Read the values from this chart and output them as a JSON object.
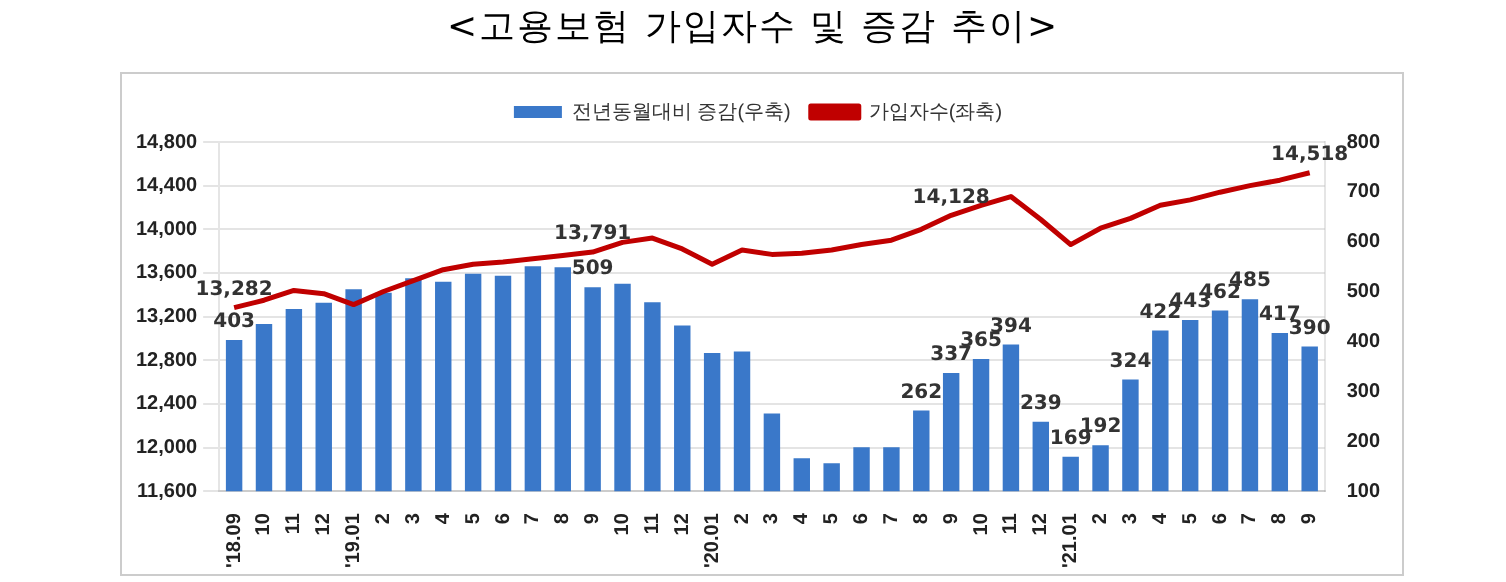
{
  "chart_data": {
    "type": "bar",
    "title": "<고용보험 가입자수 및 증감 추이>",
    "categories": [
      "'18.09",
      "10",
      "11",
      "12",
      "'19.01",
      "2",
      "3",
      "4",
      "5",
      "6",
      "7",
      "8",
      "9",
      "10",
      "11",
      "12",
      "'20.01",
      "2",
      "3",
      "4",
      "5",
      "6",
      "7",
      "8",
      "9",
      "10",
      "11",
      "12",
      "'21.01",
      "2",
      "3",
      "4",
      "5",
      "6",
      "7",
      "8",
      "9"
    ],
    "series": [
      {
        "name": "전년동월대비 증감(우축)",
        "axis": "y2",
        "color": "#3a78c9",
        "values": [
          403,
          435,
          465,
          478,
          505,
          498,
          527,
          520,
          536,
          532,
          551,
          549,
          509,
          516,
          479,
          432,
          377,
          380,
          256,
          166,
          156,
          188,
          188,
          262,
          337,
          365,
          394,
          239,
          169,
          192,
          324,
          422,
          443,
          462,
          485,
          417,
          390
        ],
        "value_labels": [
          "403",
          null,
          null,
          null,
          null,
          null,
          null,
          null,
          null,
          null,
          null,
          null,
          "509",
          null,
          null,
          null,
          null,
          null,
          null,
          null,
          null,
          null,
          null,
          "262",
          "337",
          "365",
          "394",
          "239",
          "169",
          "192",
          "324",
          "422",
          "443",
          "462",
          "485",
          "417",
          "390"
        ]
      },
      {
        "name": "가입자수(좌축)",
        "type": "line",
        "color": "#c00000",
        "values": [
          13282,
          13350,
          13440,
          13410,
          13310,
          13430,
          13530,
          13630,
          13680,
          13700,
          13730,
          13760,
          13791,
          13880,
          13920,
          13820,
          13680,
          13810,
          13770,
          13780,
          13810,
          13860,
          13900,
          14000,
          14128,
          14220,
          14300,
          14090,
          13860,
          14010,
          14100,
          14220,
          14270,
          14340,
          14400,
          14450,
          14518
        ],
        "value_labels": [
          "13,282",
          null,
          null,
          null,
          null,
          null,
          null,
          null,
          null,
          null,
          null,
          null,
          "13,791",
          null,
          null,
          null,
          null,
          null,
          null,
          null,
          null,
          null,
          null,
          null,
          "14,128",
          null,
          null,
          null,
          null,
          null,
          null,
          null,
          null,
          null,
          null,
          null,
          "14,518"
        ]
      }
    ],
    "ylim": [
      11600,
      14800
    ],
    "yticks": [
      {
        "value": 11600,
        "label": "11,600"
      },
      {
        "value": 12000,
        "label": "12,000"
      },
      {
        "value": 12400,
        "label": "12,400"
      },
      {
        "value": 12800,
        "label": "12,800"
      },
      {
        "value": 13200,
        "label": "13,200"
      },
      {
        "value": 13600,
        "label": "13,600"
      },
      {
        "value": 14000,
        "label": "14,000"
      },
      {
        "value": 14400,
        "label": "14,400"
      },
      {
        "value": 14800,
        "label": "14,800"
      }
    ],
    "y2lim": [
      100,
      800
    ],
    "y2ticks": [
      100,
      200,
      300,
      400,
      500,
      600,
      700,
      800
    ],
    "grid": "y",
    "legend": "top",
    "marker": "none",
    "line_style": "solid"
  }
}
